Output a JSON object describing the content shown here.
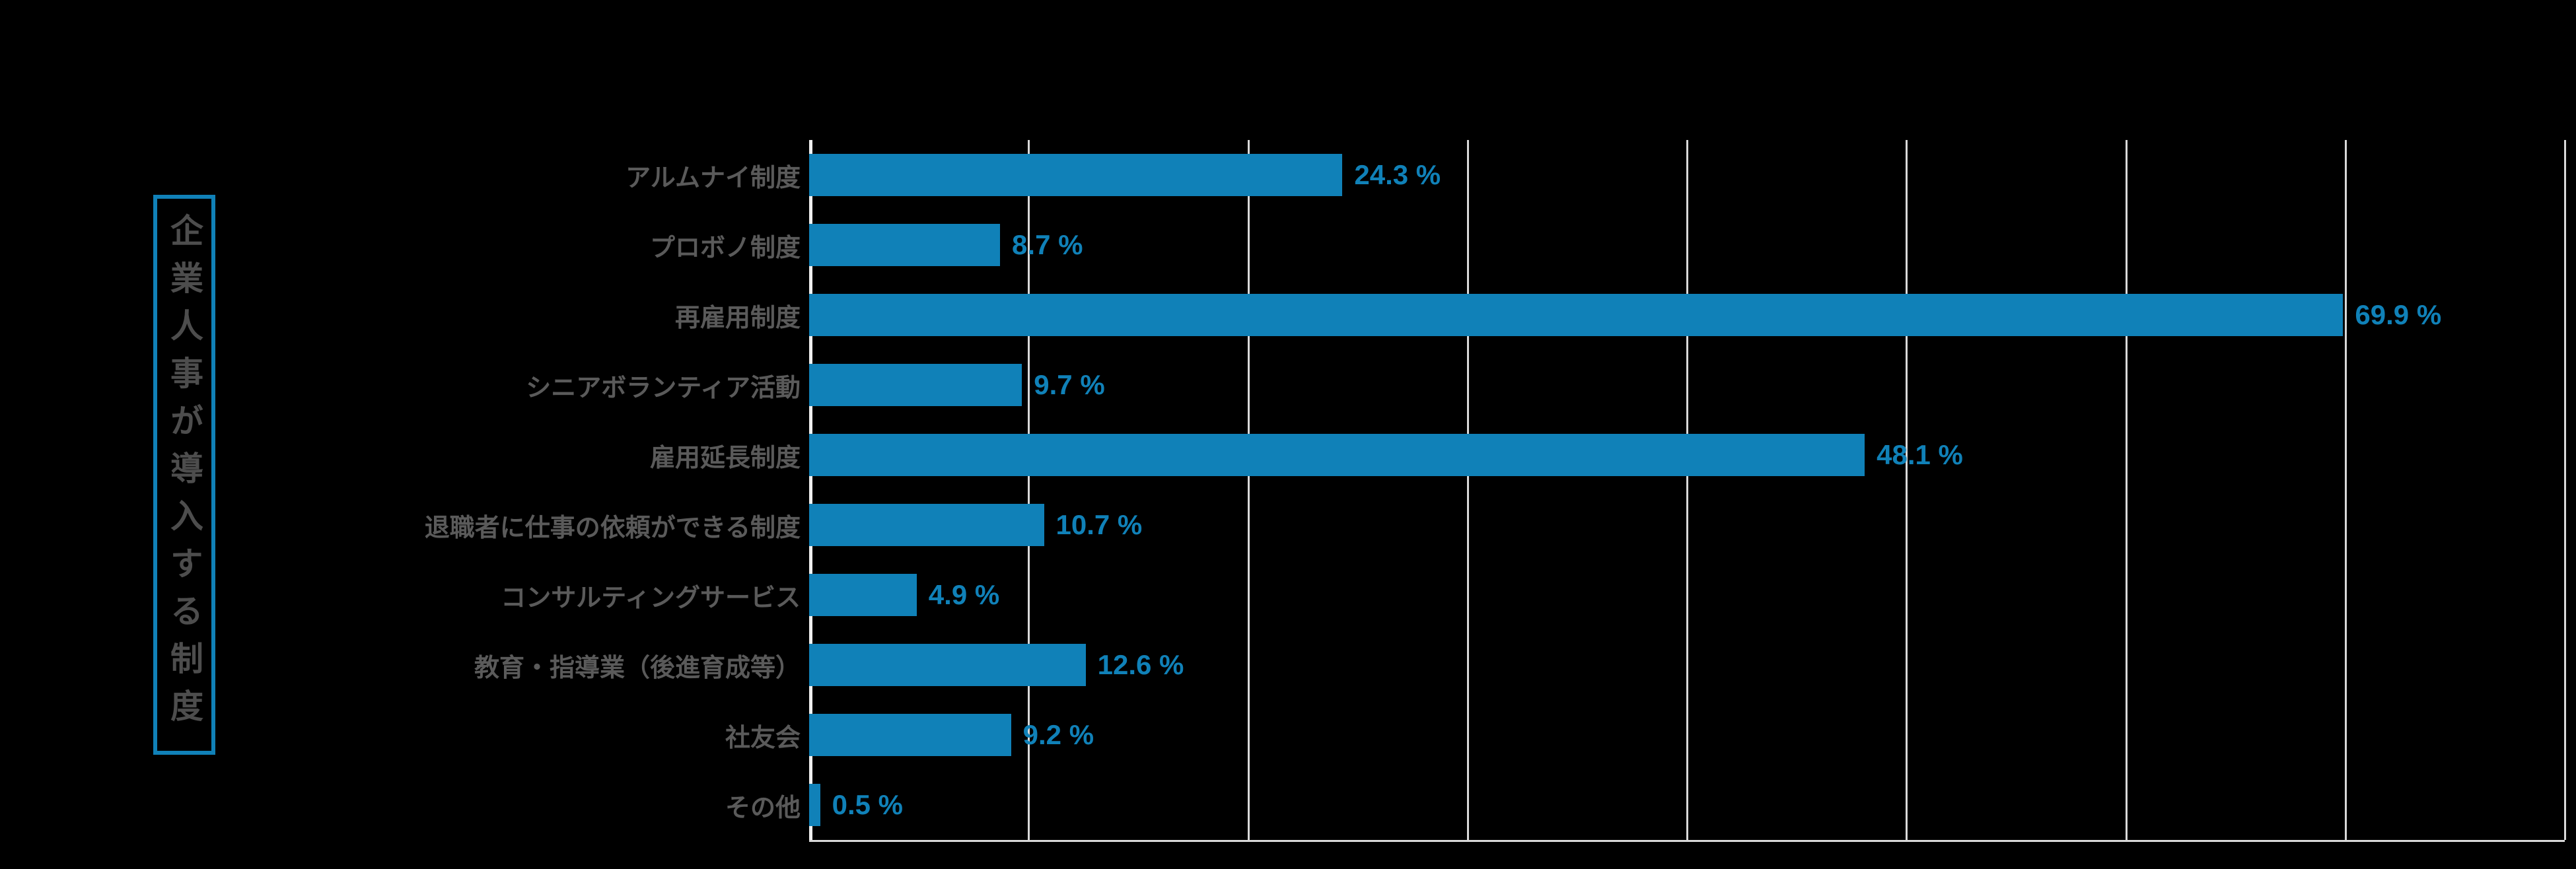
{
  "background_color": "#000000",
  "chart_data": {
    "type": "bar",
    "orientation": "horizontal",
    "title": "企業人事が導入する制度",
    "categories": [
      "アルムナイ制度",
      "プロボノ制度",
      "再雇用制度",
      "シニアボランティア活動",
      "雇用延長制度",
      "退職者に仕事の依頼ができる制度",
      "コンサルティングサービス",
      "教育・指導業（後進育成等）",
      "社友会",
      "その他"
    ],
    "values": [
      24.3,
      8.7,
      69.9,
      9.7,
      48.1,
      10.7,
      4.9,
      12.6,
      9.2,
      0.5
    ],
    "value_labels": [
      "24.3 %",
      "8.7 %",
      "69.9 %",
      "9.7 %",
      "48.1 %",
      "10.7 %",
      "4.9 %",
      "12.6 %",
      "9.2 %",
      "0.5 %"
    ],
    "xlabel": "",
    "ylabel": "",
    "xlim": [
      0,
      80
    ],
    "gridline_interval": 10,
    "grid": "vertical-major",
    "legend": "none",
    "bar_color": "#1081b8",
    "value_label_color": "#1081b8",
    "category_label_color": "#5a5a5a",
    "title_color": "#4d4d4d",
    "title_border_color": "#1081b8",
    "gridline_color": "#d9d9d9",
    "axis_line_color": "#efefef"
  }
}
